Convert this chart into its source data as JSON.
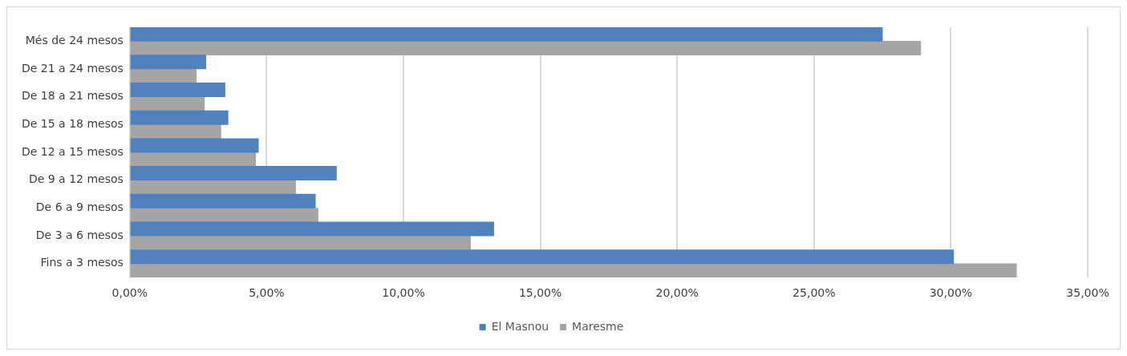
{
  "chart_data": {
    "type": "bar",
    "orientation": "horizontal",
    "categories": [
      "Més de 24 mesos",
      "De 21 a 24 mesos",
      "De 18 a 21 mesos",
      "De 15 a 18 mesos",
      "De 12 a 15 mesos",
      "De 9 a 12 mesos",
      "De 6 a 9 mesos",
      "De 3 a 6 mesos",
      "Fins a 3 mesos"
    ],
    "series": [
      {
        "name": "El Masnou",
        "color": "#4f81bd",
        "values": [
          27.5,
          2.78,
          3.48,
          3.59,
          4.7,
          7.55,
          6.78,
          13.3,
          30.1
        ]
      },
      {
        "name": "Maresme",
        "color": "#a5a5a5",
        "values": [
          28.9,
          2.43,
          2.73,
          3.33,
          4.6,
          6.06,
          6.88,
          12.45,
          32.4
        ]
      }
    ],
    "xlim": [
      0,
      35
    ],
    "xticks": [
      {
        "value": 0,
        "label": "0,00%"
      },
      {
        "value": 5,
        "label": "5,00%"
      },
      {
        "value": 10,
        "label": "10,00%"
      },
      {
        "value": 15,
        "label": "15,00%"
      },
      {
        "value": 20,
        "label": "20,00%"
      },
      {
        "value": 25,
        "label": "25,00%"
      },
      {
        "value": 30,
        "label": "30,00%"
      },
      {
        "value": 35,
        "label": "35,00%"
      }
    ],
    "grid": "x",
    "legend": "bottom"
  }
}
